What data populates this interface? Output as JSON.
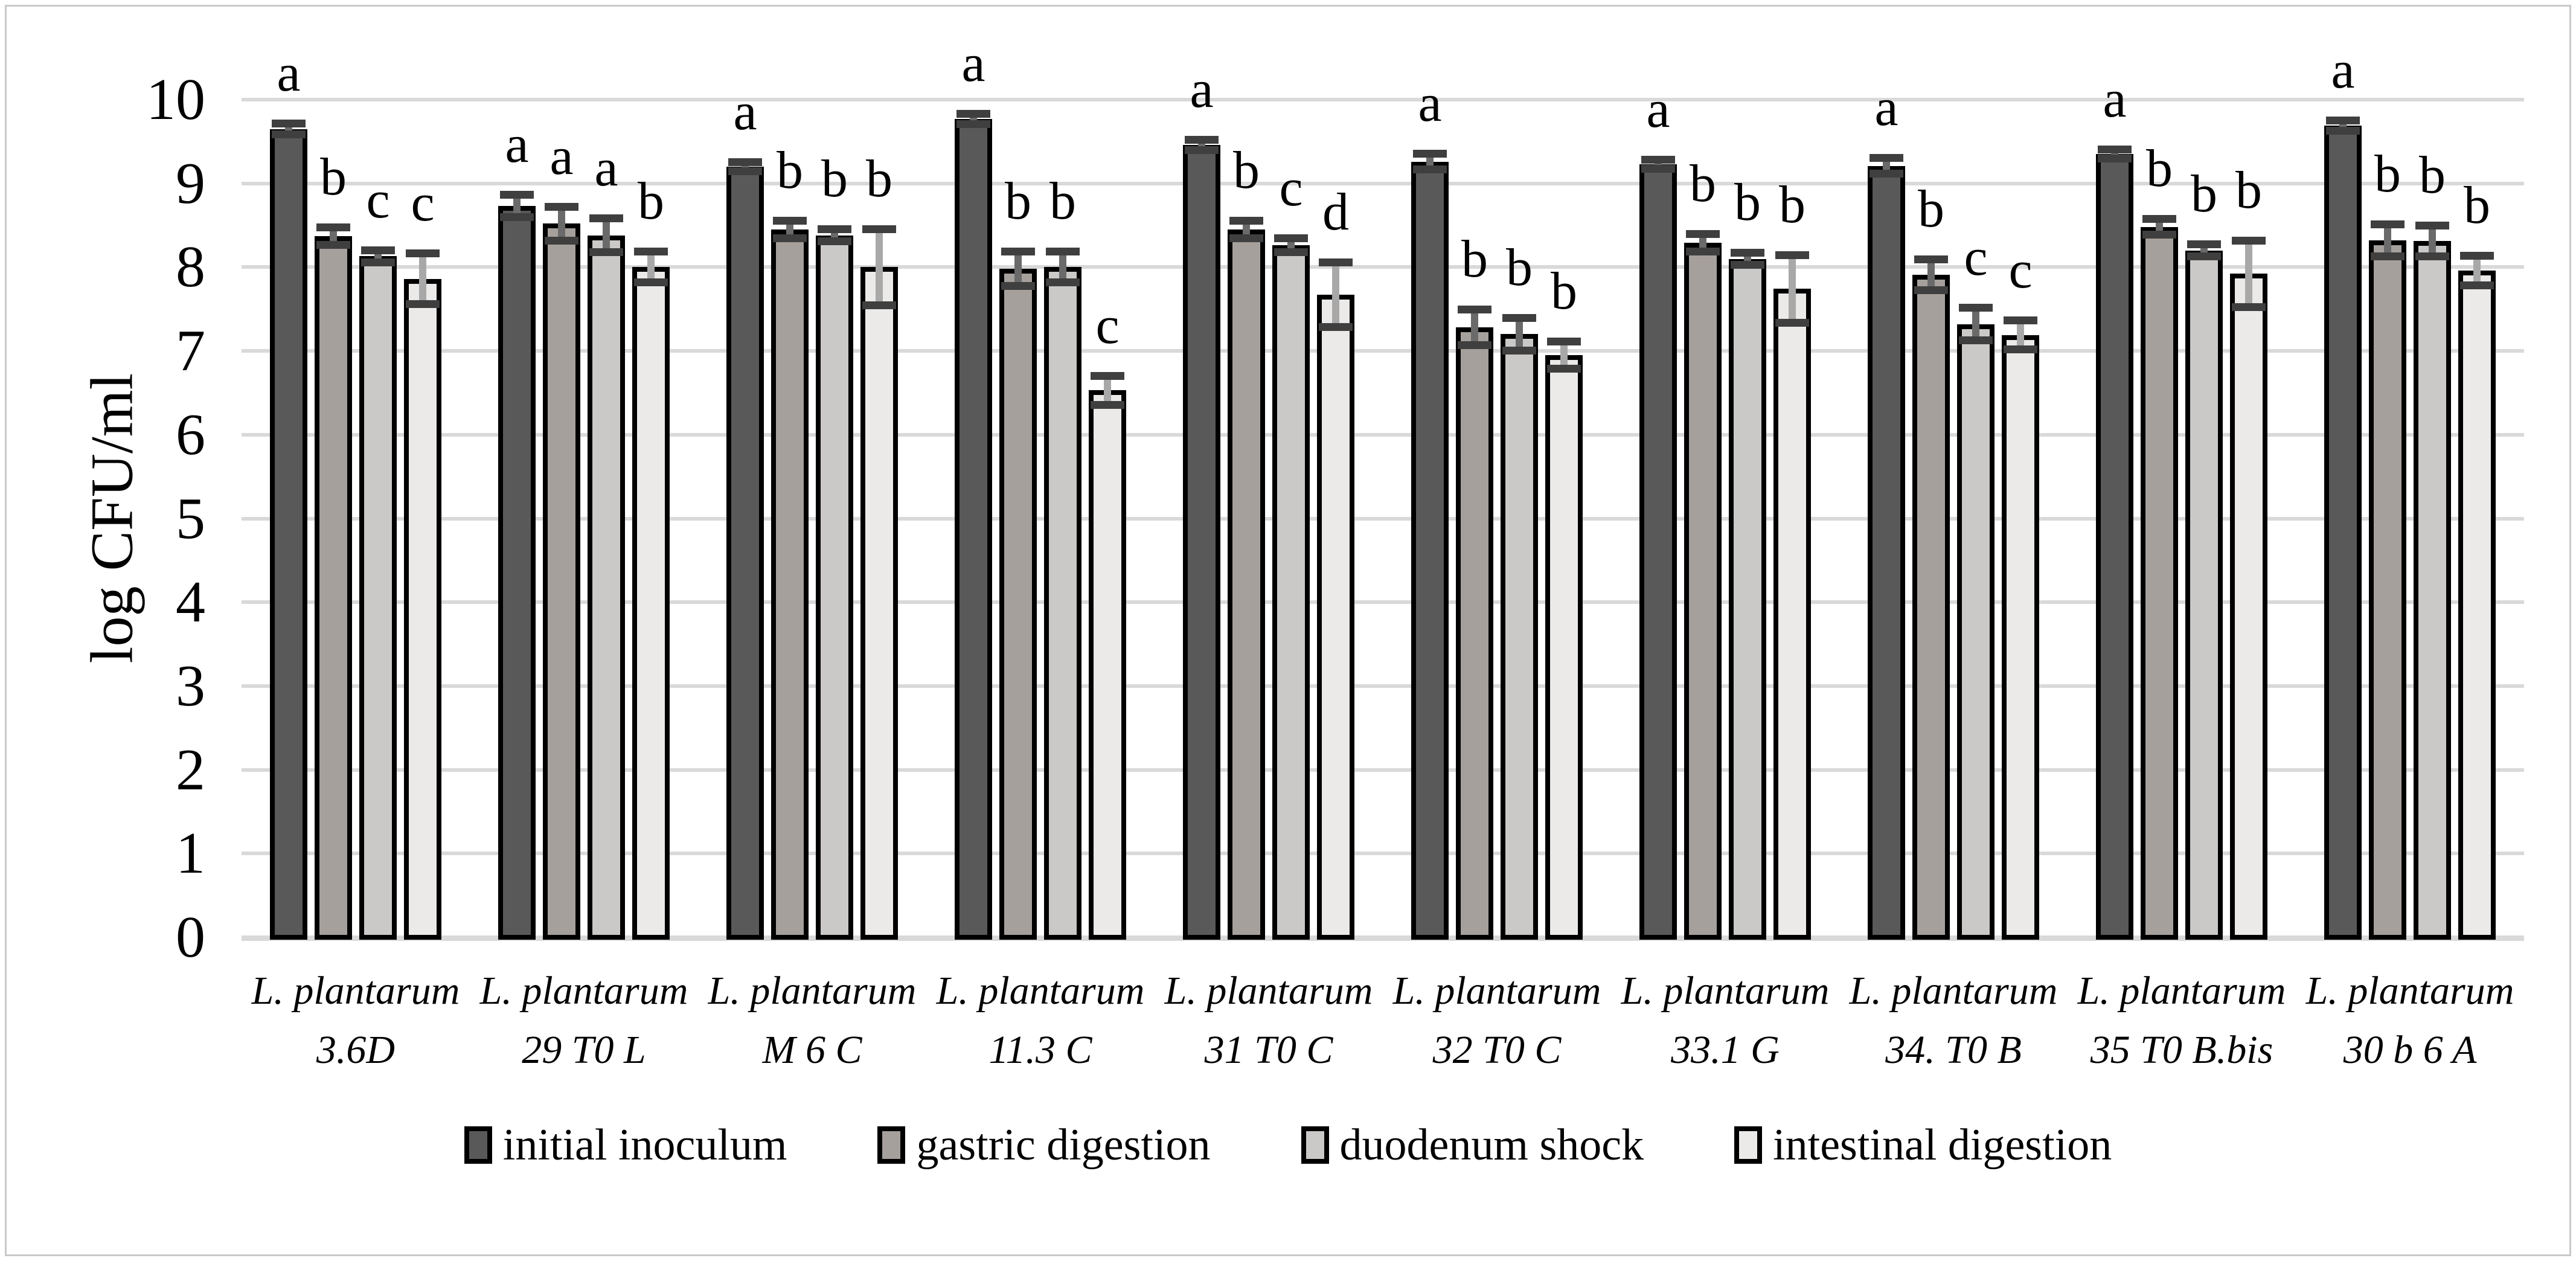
{
  "figure": {
    "background": "#ffffff",
    "border_color": "#c9c9c9"
  },
  "chart_data": {
    "type": "bar",
    "title": "",
    "xlabel": "",
    "ylabel": "log CFU/ml",
    "ylim": [
      0,
      10
    ],
    "yticks": [
      0,
      1,
      2,
      3,
      4,
      5,
      6,
      7,
      8,
      9,
      10
    ],
    "grid": true,
    "gridline_color": "#d9d9d9",
    "legend_position": "bottom",
    "error_bar_cap_color": "#3f3f3f",
    "categories": [
      {
        "line1": "L. plantarum",
        "line2": "3.6D"
      },
      {
        "line1": "L. plantarum",
        "line2": "29 T0 L"
      },
      {
        "line1": "L. plantarum",
        "line2": "M 6 C"
      },
      {
        "line1": "L. plantarum",
        "line2": "11.3 C"
      },
      {
        "line1": "L. plantarum",
        "line2": "31 T0 C"
      },
      {
        "line1": "L. plantarum",
        "line2": "32 T0 C"
      },
      {
        "line1": "L. plantarum",
        "line2": "33.1 G"
      },
      {
        "line1": "L. plantarum",
        "line2": "34. T0 B"
      },
      {
        "line1": "L. plantarum",
        "line2": "35 T0 B.bis"
      },
      {
        "line1": "L. plantarum",
        "line2": "30 b 6 A"
      }
    ],
    "series": [
      {
        "name": "initial inoculum",
        "color": "#595959",
        "values": [
          9.65,
          8.73,
          9.2,
          9.77,
          9.46,
          9.26,
          9.23,
          9.21,
          9.35,
          9.69
        ],
        "errors": [
          0.06,
          0.13,
          0.05,
          0.06,
          0.06,
          0.09,
          0.05,
          0.09,
          0.05,
          0.06
        ],
        "letters": [
          "a",
          "a",
          "a",
          "a",
          "a",
          "a",
          "a",
          "a",
          "a",
          "a"
        ]
      },
      {
        "name": "gastric digestion",
        "color": "#a6a09c",
        "values": [
          8.37,
          8.52,
          8.45,
          7.98,
          8.45,
          7.28,
          8.29,
          7.91,
          8.48,
          8.32
        ],
        "errors": [
          0.1,
          0.2,
          0.1,
          0.2,
          0.1,
          0.21,
          0.1,
          0.18,
          0.09,
          0.19
        ],
        "letters": [
          "b",
          "a",
          "b",
          "b",
          "b",
          "b",
          "b",
          "b",
          "b",
          "b"
        ]
      },
      {
        "name": "duodenum shock",
        "color": "#cbc9c8",
        "values": [
          8.13,
          8.38,
          8.38,
          8.0,
          8.26,
          7.2,
          8.1,
          7.32,
          8.2,
          8.31
        ],
        "errors": [
          0.07,
          0.2,
          0.07,
          0.18,
          0.08,
          0.19,
          0.07,
          0.19,
          0.07,
          0.18
        ],
        "letters": [
          "c",
          "a",
          "b",
          "b",
          "c",
          "b",
          "b",
          "c",
          "b",
          "b"
        ]
      },
      {
        "name": "intestinal digestion",
        "color": "#ebeae8",
        "values": [
          7.86,
          8.0,
          8.0,
          6.53,
          7.67,
          6.95,
          7.74,
          7.19,
          7.92,
          7.96
        ],
        "errors": [
          0.3,
          0.18,
          0.45,
          0.17,
          0.38,
          0.16,
          0.4,
          0.17,
          0.39,
          0.17
        ],
        "letters": [
          "c",
          "b",
          "b",
          "c",
          "d",
          "b",
          "b",
          "c",
          "b",
          "b"
        ]
      }
    ]
  }
}
